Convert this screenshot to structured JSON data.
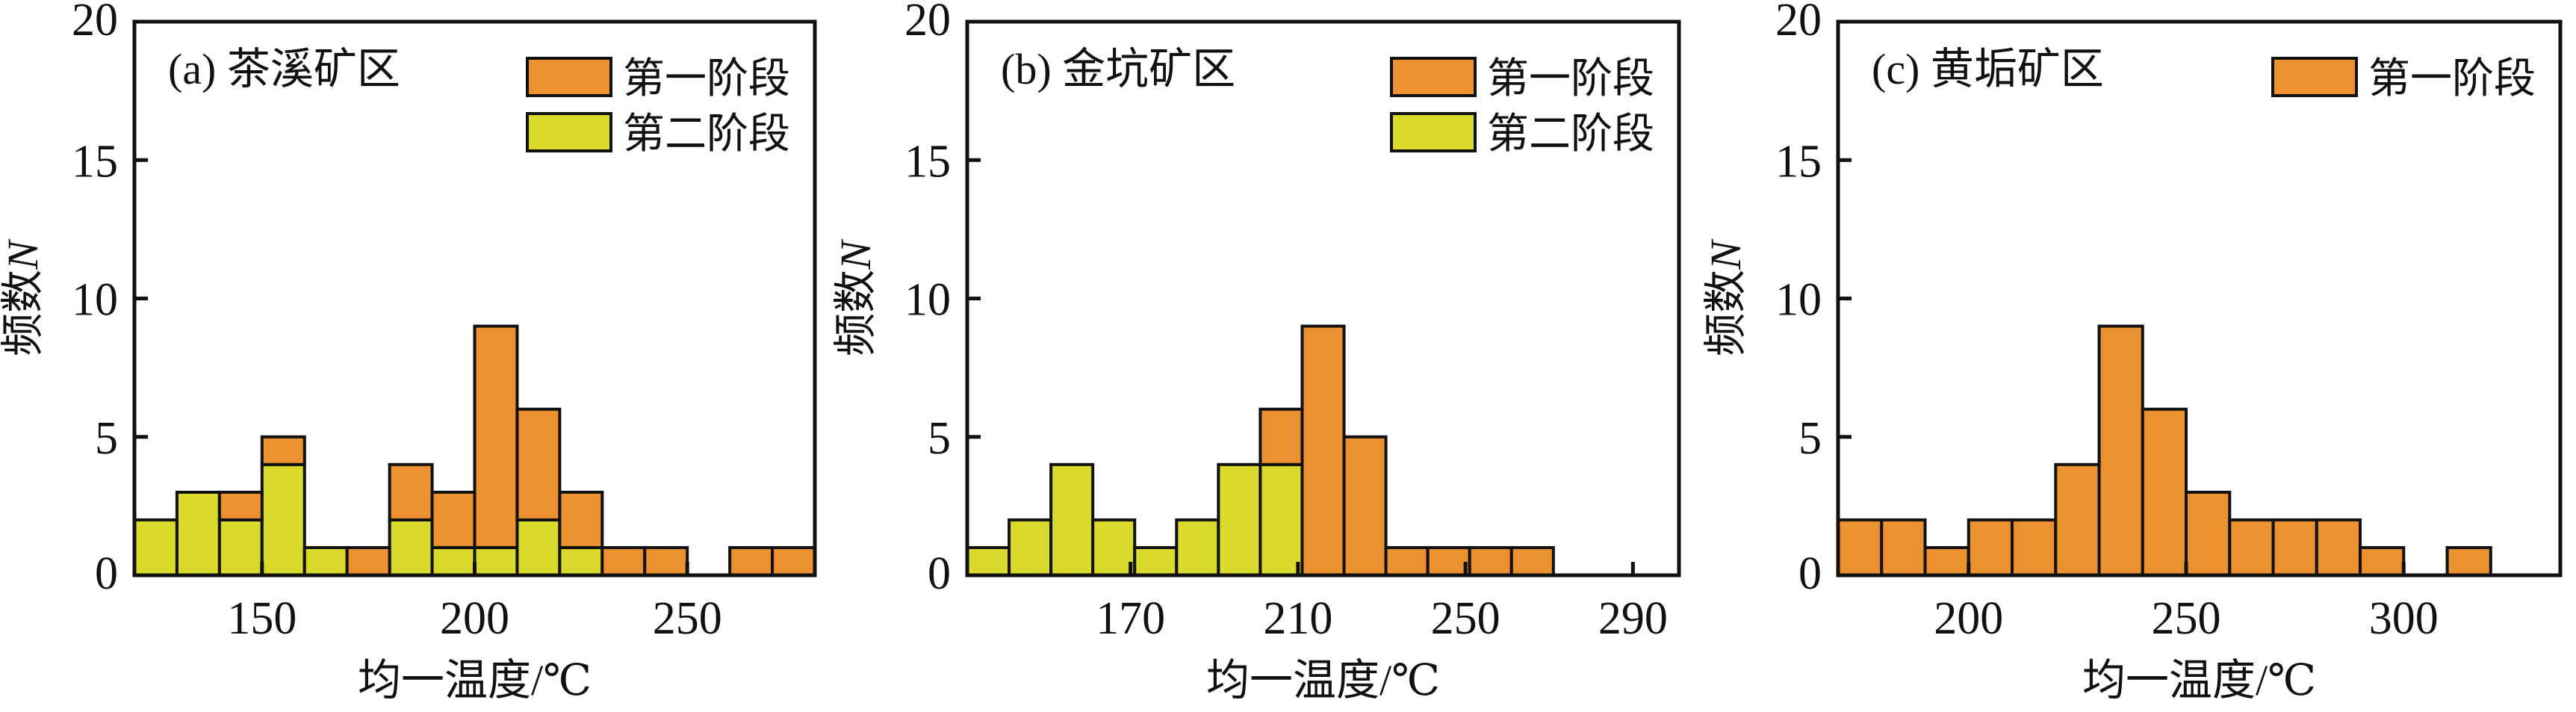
{
  "chart_data": [
    {
      "type": "bar",
      "stacked": true,
      "title": "(a) 茶溪矿区",
      "xlabel": "均一温度/℃",
      "ylabel": "频数N",
      "xlim": [
        120,
        280
      ],
      "ylim": [
        0,
        20
      ],
      "xticks": [
        150,
        200,
        250
      ],
      "yticks": [
        0,
        5,
        10,
        15,
        20
      ],
      "bin_width": 10,
      "bin_starts": [
        120,
        130,
        140,
        150,
        160,
        170,
        180,
        190,
        200,
        210,
        220,
        230,
        240,
        250,
        260,
        270
      ],
      "legend": "top-right",
      "legend_order": [
        "第一阶段",
        "第二阶段"
      ],
      "series": [
        {
          "name": "第二阶段",
          "color": "#D9DA2B",
          "values": [
            2,
            3,
            2,
            4,
            1,
            0,
            2,
            1,
            1,
            2,
            1,
            0,
            0,
            0,
            0,
            0
          ]
        },
        {
          "name": "第一阶段",
          "color": "#EB9130",
          "values": [
            0,
            0,
            1,
            1,
            0,
            1,
            2,
            2,
            8,
            4,
            2,
            1,
            1,
            0,
            1,
            1
          ]
        }
      ]
    },
    {
      "type": "bar",
      "stacked": true,
      "title": "(b) 金坑矿区",
      "xlabel": "均一温度/℃",
      "ylabel": "频数N",
      "xlim": [
        131,
        301
      ],
      "ylim": [
        0,
        20
      ],
      "xticks": [
        170,
        210,
        250,
        290
      ],
      "yticks": [
        0,
        5,
        10,
        15,
        20
      ],
      "bin_width": 10,
      "bin_starts": [
        131,
        141,
        151,
        161,
        171,
        181,
        191,
        201,
        211,
        221,
        231,
        241,
        251,
        261
      ],
      "legend": "top-right",
      "legend_order": [
        "第一阶段",
        "第二阶段"
      ],
      "series": [
        {
          "name": "第二阶段",
          "color": "#D9DA2B",
          "values": [
            1,
            2,
            4,
            2,
            1,
            2,
            4,
            4,
            0,
            0,
            0,
            0,
            0,
            0
          ]
        },
        {
          "name": "第一阶段",
          "color": "#EB9130",
          "values": [
            0,
            0,
            0,
            0,
            0,
            0,
            0,
            2,
            9,
            5,
            1,
            1,
            1,
            1
          ]
        }
      ]
    },
    {
      "type": "bar",
      "stacked": true,
      "title": "(c) 黄垢矿区",
      "xlabel": "均一温度/℃",
      "ylabel": "频数N",
      "xlim": [
        170,
        336
      ],
      "ylim": [
        0,
        20
      ],
      "xticks": [
        200,
        250,
        300
      ],
      "yticks": [
        0,
        5,
        10,
        15,
        20
      ],
      "bin_width": 10,
      "bin_starts": [
        170,
        180,
        190,
        200,
        210,
        220,
        230,
        240,
        250,
        260,
        270,
        280,
        290,
        300,
        310
      ],
      "legend": "top-right",
      "legend_order": [
        "第一阶段"
      ],
      "series": [
        {
          "name": "第一阶段",
          "color": "#EB9130",
          "values": [
            2,
            2,
            1,
            2,
            2,
            4,
            9,
            6,
            3,
            2,
            2,
            2,
            1,
            0,
            1
          ]
        }
      ]
    }
  ]
}
